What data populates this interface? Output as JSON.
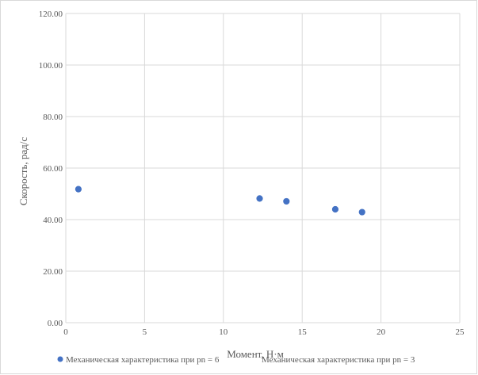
{
  "chart_data": {
    "type": "scatter",
    "title": "",
    "xlabel": "Момент, Н·м",
    "ylabel": "Скорость, рад/с",
    "xlim": [
      0,
      25
    ],
    "ylim": [
      0,
      120
    ],
    "x_ticks": [
      "0",
      "5",
      "10",
      "15",
      "20",
      "25"
    ],
    "x_tick_values": [
      0,
      5,
      10,
      15,
      20,
      25
    ],
    "y_ticks": [
      "0.00",
      "20.00",
      "40.00",
      "60.00",
      "80.00",
      "100.00",
      "120.00"
    ],
    "y_tick_values": [
      0,
      20,
      40,
      60,
      80,
      100,
      120
    ],
    "grid": true,
    "legend_position": "bottom",
    "series": [
      {
        "name": "Механическая характеристика при pn = 6",
        "color": "#4472c4",
        "points": [
          {
            "x": 0.8,
            "y": 51.8
          },
          {
            "x": 12.3,
            "y": 48.2
          },
          {
            "x": 14.0,
            "y": 47.1
          },
          {
            "x": 17.1,
            "y": 44.0
          },
          {
            "x": 18.8,
            "y": 42.9
          }
        ]
      },
      {
        "name": "Механическая характеристика при pn = 3",
        "color": "#ed7d31",
        "points": []
      }
    ]
  }
}
